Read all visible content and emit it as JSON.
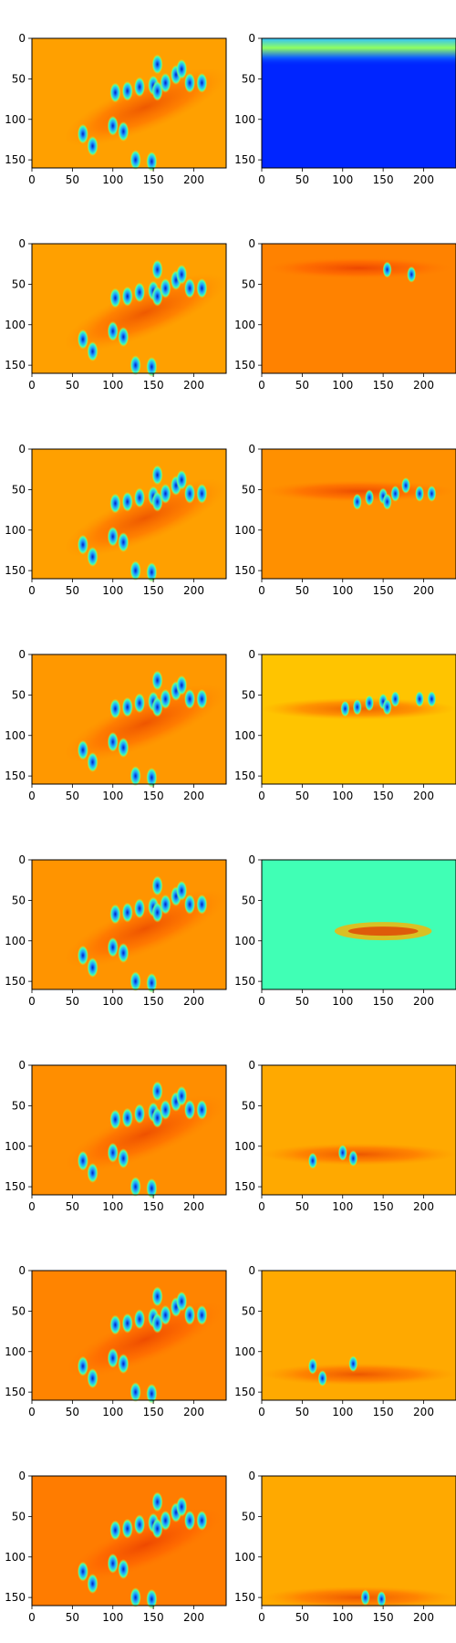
{
  "chart_data": {
    "type": "heatmap",
    "layout": {
      "rows": 8,
      "cols": 2
    },
    "colormap": "jet",
    "x_ticks": [
      0,
      50,
      100,
      150,
      200
    ],
    "y_ticks": [
      0,
      50,
      100,
      150
    ],
    "xlim": [
      0,
      240
    ],
    "ylim": [
      160,
      0
    ],
    "left_column": [
      {
        "row": 0,
        "background": "#FFA000"
      },
      {
        "row": 1,
        "background": "#FFA000"
      },
      {
        "row": 2,
        "background": "#FFA000"
      },
      {
        "row": 3,
        "background": "#FF9800"
      },
      {
        "row": 4,
        "background": "#FF9400"
      },
      {
        "row": 5,
        "background": "#FF8E00"
      },
      {
        "row": 6,
        "background": "#FF8400"
      },
      {
        "row": 7,
        "background": "#FF7C00"
      }
    ],
    "right_column": [
      {
        "row": 0,
        "background": "#0025FF",
        "band_center_y": 12
      },
      {
        "row": 1,
        "background": "#FF8200",
        "band_center_y": 30
      },
      {
        "row": 2,
        "background": "#FF9000",
        "band_center_y": 52
      },
      {
        "row": 3,
        "background": "#FFC400",
        "band_center_y": 67
      },
      {
        "row": 4,
        "background": "#40FFB5",
        "band_center_y": 88
      },
      {
        "row": 5,
        "background": "#FFA900",
        "band_center_y": 110
      },
      {
        "row": 6,
        "background": "#FFA900",
        "band_center_y": 128
      },
      {
        "row": 7,
        "background": "#FFA900",
        "band_center_y": 150
      }
    ],
    "blobs": [
      {
        "x": 103,
        "y": 67
      },
      {
        "x": 118,
        "y": 65
      },
      {
        "x": 133,
        "y": 60
      },
      {
        "x": 150,
        "y": 58
      },
      {
        "x": 155,
        "y": 65
      },
      {
        "x": 165,
        "y": 55
      },
      {
        "x": 178,
        "y": 45
      },
      {
        "x": 185,
        "y": 38
      },
      {
        "x": 195,
        "y": 55
      },
      {
        "x": 210,
        "y": 55
      },
      {
        "x": 63,
        "y": 118
      },
      {
        "x": 75,
        "y": 133
      },
      {
        "x": 100,
        "y": 108
      },
      {
        "x": 113,
        "y": 115
      },
      {
        "x": 128,
        "y": 150
      },
      {
        "x": 148,
        "y": 152
      },
      {
        "x": 155,
        "y": 32
      }
    ]
  }
}
